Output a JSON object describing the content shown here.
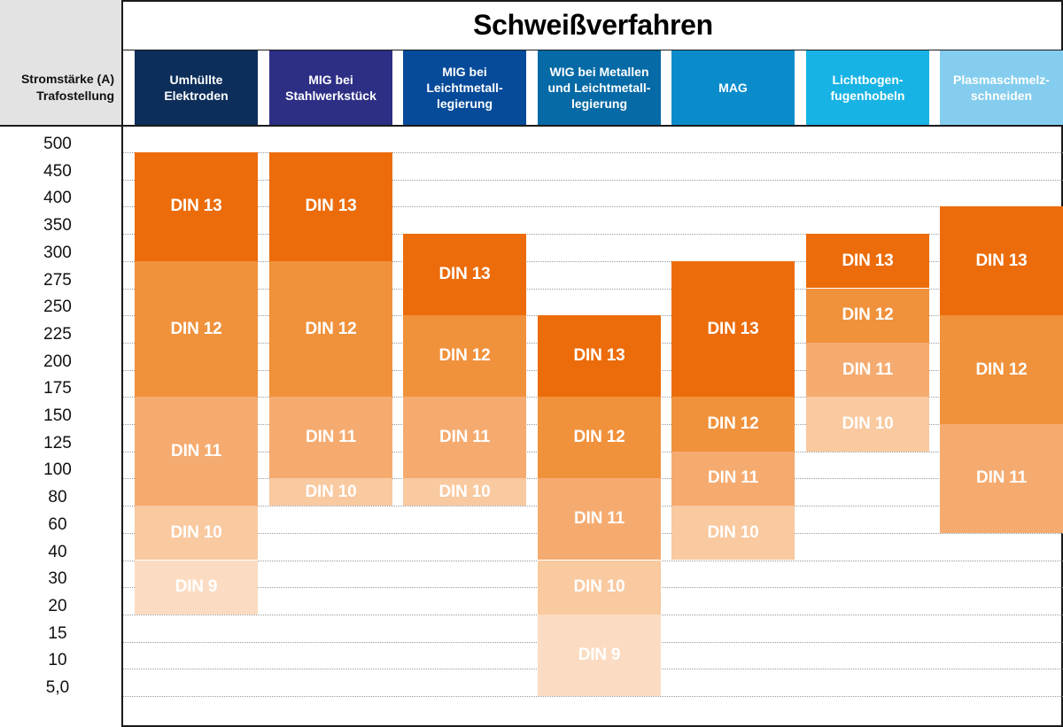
{
  "chart_data": {
    "type": "table",
    "title": "Schweißverfahren",
    "ylabel_line1": "Stromstärke (A)",
    "ylabel_line2": "Trafostellung",
    "y_ticks": [
      "500",
      "450",
      "400",
      "350",
      "300",
      "275",
      "250",
      "225",
      "200",
      "175",
      "150",
      "125",
      "100",
      "80",
      "60",
      "40",
      "30",
      "20",
      "15",
      "10",
      "5,0"
    ],
    "colors": {
      "DIN 13": "#ec6c0b",
      "DIN 12": "#f0913c",
      "DIN 11": "#f5ab70",
      "DIN 10": "#f9c9a0",
      "DIN 9": "#fbdcc2"
    },
    "columns": [
      {
        "label": "Umhüllte Elektroden",
        "color": "#0d2e5a",
        "bands": [
          {
            "label": "DIN 13",
            "from": "300",
            "to": "500"
          },
          {
            "label": "DIN 12",
            "from": "175",
            "to": "300"
          },
          {
            "label": "DIN 11",
            "from": "80",
            "to": "175"
          },
          {
            "label": "DIN 10",
            "from": "40",
            "to": "80"
          },
          {
            "label": "DIN 9",
            "from": "20",
            "to": "40"
          }
        ]
      },
      {
        "label": "MIG bei Stahlwerkstück",
        "color": "#2d2f85",
        "bands": [
          {
            "label": "DIN 13",
            "from": "300",
            "to": "500"
          },
          {
            "label": "DIN 12",
            "from": "175",
            "to": "300"
          },
          {
            "label": "DIN 11",
            "from": "100",
            "to": "175"
          },
          {
            "label": "DIN 10",
            "from": "80",
            "to": "100"
          }
        ]
      },
      {
        "label": "MIG bei Leichtmetall-legierung",
        "color": "#064b9a",
        "bands": [
          {
            "label": "DIN 13",
            "from": "250",
            "to": "350"
          },
          {
            "label": "DIN 12",
            "from": "175",
            "to": "250"
          },
          {
            "label": "DIN 11",
            "from": "100",
            "to": "175"
          },
          {
            "label": "DIN 10",
            "from": "80",
            "to": "100"
          }
        ]
      },
      {
        "label": "WIG bei Metallen und Leichtmetall-legierung",
        "color": "#066aa6",
        "bands": [
          {
            "label": "DIN 13",
            "from": "175",
            "to": "250"
          },
          {
            "label": "DIN 12",
            "from": "100",
            "to": "175"
          },
          {
            "label": "DIN 11",
            "from": "40",
            "to": "100"
          },
          {
            "label": "DIN 10",
            "from": "20",
            "to": "40"
          },
          {
            "label": "DIN 9",
            "from": "5,0",
            "to": "20"
          }
        ]
      },
      {
        "label": "MAG",
        "color": "#0a8ccb",
        "bands": [
          {
            "label": "DIN 13",
            "from": "175",
            "to": "300"
          },
          {
            "label": "DIN 12",
            "from": "125",
            "to": "175"
          },
          {
            "label": "DIN 11",
            "from": "80",
            "to": "125"
          },
          {
            "label": "DIN 10",
            "from": "40",
            "to": "80"
          }
        ]
      },
      {
        "label": "Lichtbogen-fugenhobeln",
        "color": "#17b3e4",
        "bands": [
          {
            "label": "DIN 13",
            "from": "275",
            "to": "350"
          },
          {
            "label": "DIN 12",
            "from": "225",
            "to": "275"
          },
          {
            "label": "DIN 11",
            "from": "175",
            "to": "225"
          },
          {
            "label": "DIN 10",
            "from": "125",
            "to": "175"
          }
        ]
      },
      {
        "label": "Plasmaschmelz-schneiden",
        "color": "#84cdee",
        "bands": [
          {
            "label": "DIN 13",
            "from": "250",
            "to": "400"
          },
          {
            "label": "DIN 12",
            "from": "150",
            "to": "250"
          },
          {
            "label": "DIN 11",
            "from": "60",
            "to": "150"
          }
        ]
      }
    ]
  }
}
